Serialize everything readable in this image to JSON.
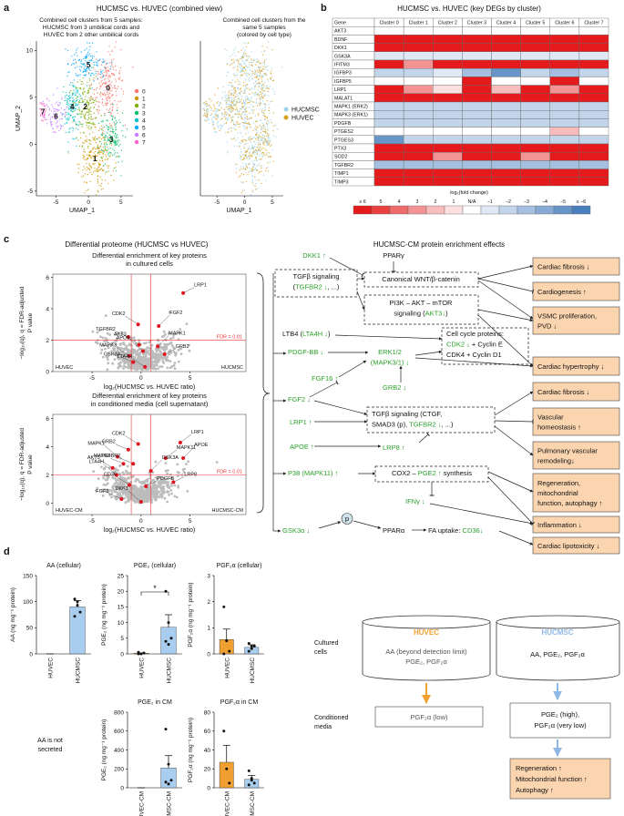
{
  "panel_labels": [
    "a",
    "b",
    "c",
    "d"
  ],
  "umap": {
    "title": "HUCMSC vs. HUVEC (combined view)",
    "left_caption": [
      "Combined cell clusters from 5 samples:",
      "HUCMSC from 3 umbilical cords and",
      "HUVEC from 2 other umbilical cords"
    ],
    "right_caption": [
      "Combined cell clusters from the",
      "same 5 samples",
      "(colored by cell type)"
    ],
    "xlabel": "UMAP_1",
    "ylabel": "UMAP_2",
    "xlim": [
      -8,
      6
    ],
    "ylim": [
      -5.5,
      11
    ],
    "xticks": [
      -5,
      0,
      5
    ],
    "yticks": [
      -5,
      0,
      5,
      10
    ],
    "clusters": [
      {
        "label": "0",
        "color": "#f8766d"
      },
      {
        "label": "1",
        "color": "#cd9600"
      },
      {
        "label": "2",
        "color": "#7cae00"
      },
      {
        "label": "3",
        "color": "#00be67"
      },
      {
        "label": "4",
        "color": "#00bfc4"
      },
      {
        "label": "5",
        "color": "#00a9ff"
      },
      {
        "label": "6",
        "color": "#c77cff"
      },
      {
        "label": "7",
        "color": "#ff61cc"
      }
    ],
    "cell_types": [
      {
        "name": "HUCMSC",
        "color": "#9fd3ea"
      },
      {
        "name": "HUVEC",
        "color": "#d9a21f"
      }
    ]
  },
  "heatmap": {
    "title": "HUCMSC vs. HUVEC (key DEGs by cluster)",
    "corner": "Gene",
    "columns": [
      "Cluster 0",
      "Cluster 1",
      "Cluster 2",
      "Cluster 3",
      "Cluster 4",
      "Cluster 5",
      "Cluster 6",
      "Cluster 7"
    ],
    "rows": [
      {
        "gene": "AKT3",
        "values": [
          0,
          0,
          0,
          0,
          0,
          0,
          0,
          0
        ]
      },
      {
        "gene": "BDNF",
        "values": [
          6,
          6,
          6,
          6,
          6,
          6,
          6,
          6
        ]
      },
      {
        "gene": "DKK1",
        "values": [
          6,
          6,
          6,
          6,
          6,
          6,
          6,
          6
        ]
      },
      {
        "gene": "GSK3A",
        "values": [
          -1,
          -1,
          -1,
          -1,
          -1,
          -1,
          -1,
          -1
        ]
      },
      {
        "gene": "IFITM3",
        "values": [
          6,
          3,
          6,
          6,
          6,
          6,
          6,
          6
        ]
      },
      {
        "gene": "IGFBP3",
        "values": [
          -2,
          -2,
          -1,
          -3,
          -5,
          -2,
          -3,
          -2
        ]
      },
      {
        "gene": "IGFBP5",
        "values": [
          0,
          0,
          0,
          6,
          0,
          0,
          6,
          0
        ]
      },
      {
        "gene": "LRP1",
        "values": [
          6,
          3,
          1,
          6,
          2,
          6,
          3,
          6
        ]
      },
      {
        "gene": "MALAT1",
        "values": [
          6,
          6,
          6,
          6,
          6,
          6,
          6,
          6
        ]
      },
      {
        "gene": "MAPK1 (ERK2)",
        "values": [
          -2,
          -2,
          -2,
          -2,
          -2,
          -2,
          -2,
          -2
        ]
      },
      {
        "gene": "MAPK3 (ERK1)",
        "values": [
          -2,
          -2,
          -2,
          -2,
          -2,
          -2,
          -2,
          -2
        ]
      },
      {
        "gene": "PDGFB",
        "values": [
          -2,
          -2,
          -2,
          -2,
          -2,
          -2,
          -2,
          -2
        ]
      },
      {
        "gene": "PTGES2",
        "values": [
          0,
          0,
          0,
          0,
          0,
          0,
          2,
          0
        ]
      },
      {
        "gene": "PTGES3",
        "values": [
          -5,
          -2,
          -2,
          -2,
          -2,
          -2,
          -2,
          -2
        ]
      },
      {
        "gene": "PTX3",
        "values": [
          6,
          6,
          6,
          6,
          6,
          6,
          6,
          6
        ]
      },
      {
        "gene": "SOD2",
        "values": [
          6,
          6,
          3,
          6,
          6,
          3,
          6,
          6
        ]
      },
      {
        "gene": "TGFBR2",
        "values": [
          -3,
          -3,
          -3,
          -3,
          -3,
          -3,
          -3,
          -3
        ]
      },
      {
        "gene": "TIMP1",
        "values": [
          6,
          6,
          6,
          6,
          6,
          6,
          6,
          6
        ]
      },
      {
        "gene": "TIMP3",
        "values": [
          6,
          6,
          6,
          6,
          6,
          6,
          6,
          6
        ]
      }
    ],
    "scale_title": "log₂(fold change)",
    "scale": [
      {
        "label": "≥ 6",
        "value": 6,
        "color": "#e41a1c"
      },
      {
        "label": "5",
        "value": 5,
        "color": "#ea4040"
      },
      {
        "label": "4",
        "value": 4,
        "color": "#ef6a6a"
      },
      {
        "label": "3",
        "value": 3,
        "color": "#f39393"
      },
      {
        "label": "2",
        "value": 2,
        "color": "#f8bcbc"
      },
      {
        "label": "1",
        "value": 1,
        "color": "#fce0e0"
      },
      {
        "label": "N/A",
        "color": "#ffffff"
      },
      {
        "label": "−1",
        "value": -1,
        "color": "#dfe8f4"
      },
      {
        "label": "−2",
        "value": -2,
        "color": "#c3d5ea"
      },
      {
        "label": "−3",
        "value": -3,
        "color": "#a4bfdf"
      },
      {
        "label": "−4",
        "value": -4,
        "color": "#86aad4"
      },
      {
        "label": "−5",
        "value": -5,
        "color": "#6894c8"
      },
      {
        "label": "≤ −6",
        "value": -6,
        "color": "#4a7fbd"
      }
    ]
  },
  "proteome": {
    "title": "Differential proteome (HUCMSC vs HUVEC)",
    "cells": {
      "title": [
        "Differential enrichment of key proteins",
        "in cultured cells"
      ],
      "xlabel": "log₂(HUCMSC vs. HUVEC ratio)",
      "ylabel": [
        "−log₁₀(q), q = FDR-adjusted",
        "P value"
      ],
      "xlim": [
        -9,
        10.7
      ],
      "ylim": [
        0,
        6.2
      ],
      "xticks": [
        -5,
        0,
        5
      ],
      "yticks": [
        0,
        2,
        4,
        6
      ],
      "fdr": {
        "value": 2,
        "label": "FDR = 0.01"
      },
      "fold_lines": [
        -1,
        1
      ],
      "corner_labels": [
        "HUVEC",
        "HUCMSC"
      ],
      "proteins": [
        {
          "name": "LRP1",
          "x": 4.3,
          "y": 5.0
        },
        {
          "name": "CDK2",
          "x": -0.3,
          "y": 3.0
        },
        {
          "name": "FGF2",
          "x": 1.8,
          "y": 2.9
        },
        {
          "name": "TGFBR2",
          "x": -1.3,
          "y": 2.2
        },
        {
          "name": "AKT3",
          "x": -0.2,
          "y": 1.7
        },
        {
          "name": "MAPK1",
          "x": 1.7,
          "y": 1.6
        },
        {
          "name": "GRB2",
          "x": 2.4,
          "y": 1.1
        },
        {
          "name": "MAPK3",
          "x": -1.2,
          "y": 1.0
        },
        {
          "name": "APOE",
          "x": 0.2,
          "y": 1.3
        },
        {
          "name": "GSK3A",
          "x": -0.8,
          "y": 0.6
        },
        {
          "name": "LTA4H",
          "x": 0.4,
          "y": 0.3
        }
      ]
    },
    "media": {
      "title": [
        "Differential enrichment of key proteins",
        "in conditioned media (cell supernatant)"
      ],
      "xlabel": "log₂(HUCMSC vs. HUVEC ratio)",
      "ylabel": [
        "−log₁₀(q), q = FDR-adjusted",
        "P value"
      ],
      "xlim": [
        -9,
        10.7
      ],
      "ylim": [
        -0.8,
        6.3
      ],
      "xticks": [
        -5,
        0,
        5
      ],
      "yticks": [
        0,
        2,
        4,
        6
      ],
      "fdr": {
        "value": 2,
        "label": "FDR = 0.01"
      },
      "fold_lines": [
        -1,
        1
      ],
      "corner_labels": [
        "HUVEC-CM",
        "HUCMSC-CM"
      ],
      "proteins": [
        {
          "name": "GRB2",
          "x": -1.3,
          "y": 3.8
        },
        {
          "name": "CDK2",
          "x": -0.3,
          "y": 4.2
        },
        {
          "name": "MAPK1",
          "x": -2.4,
          "y": 3.3
        },
        {
          "name": "MAPK3",
          "x": -1.8,
          "y": 2.8
        },
        {
          "name": "AKT3",
          "x": -2.9,
          "y": 2.5
        },
        {
          "name": "LTA4H",
          "x": -2.5,
          "y": 2.0
        },
        {
          "name": "TGFBR2",
          "x": -0.8,
          "y": 2.8
        },
        {
          "name": "MAPK11",
          "x": 2.5,
          "y": 3.2
        },
        {
          "name": "GSK3A",
          "x": 1.0,
          "y": 2.3
        },
        {
          "name": "PDGFB",
          "x": 0.5,
          "y": 1.2
        },
        {
          "name": "CD36",
          "x": -1.2,
          "y": 1.3
        },
        {
          "name": "DKK1",
          "x": 0.0,
          "y": 0.1
        },
        {
          "name": "FGF2",
          "x": -2.0,
          "y": 0.3
        },
        {
          "name": "LRP1",
          "x": 4.0,
          "y": 4.3
        },
        {
          "name": "APOE",
          "x": 4.3,
          "y": 3.2
        },
        {
          "name": "LRP8",
          "x": 3.3,
          "y": 1.5
        }
      ]
    }
  },
  "network": {
    "title": "HUCMSC-CM protein enrichment effects",
    "nodes": [
      [
        [
          {
            "text": "DKK1 ↑",
            "color": "#2ca02c"
          }
        ]
      ],
      [
        [
          {
            "text": "PPARγ"
          }
        ]
      ],
      [
        [
          {
            "text": "TGFβ signaling"
          }
        ],
        [
          {
            "text": "("
          },
          {
            "text": "TGFBR2 ↓",
            "color": "#2ca02c"
          },
          {
            "text": ", ...)"
          }
        ]
      ],
      [
        [
          {
            "text": "Canonical WNT/β-catenin"
          }
        ]
      ],
      [
        [
          {
            "text": "PI3K – AKT – mTOR"
          }
        ],
        [
          {
            "text": "signaling ("
          },
          {
            "text": "AKT3↓",
            "color": "#2ca02c"
          },
          {
            "text": ")"
          }
        ]
      ],
      [
        [
          {
            "text": "LTB4 ("
          },
          {
            "text": "LTA4H ↓",
            "color": "#2ca02c"
          },
          {
            "text": ")"
          }
        ]
      ],
      [
        [
          {
            "text": "Cell cycle proteins:"
          }
        ],
        [
          {
            "text": "CDK2 ↓",
            "color": "#2ca02c"
          },
          {
            "text": " + Cyclin E"
          }
        ],
        [
          {
            "text": "CDK4 + Cyclin D1"
          }
        ]
      ],
      [
        [
          {
            "text": "PDGF-BB ↓",
            "color": "#2ca02c"
          }
        ]
      ],
      [
        [
          {
            "text": "ERK1/2",
            "color": "#2ca02c"
          }
        ],
        [
          {
            "text": "(MAPK3/1) ↓",
            "color": "#2ca02c"
          }
        ]
      ],
      [
        [
          {
            "text": "FGF16 ↑",
            "color": "#2ca02c"
          }
        ]
      ],
      [
        [
          {
            "text": "FGF2 ↓",
            "color": "#2ca02c"
          }
        ]
      ],
      [
        [
          {
            "text": "GRB2 ↓",
            "color": "#2ca02c"
          }
        ]
      ],
      [
        [
          {
            "text": "LRP1 ↑",
            "color": "#2ca02c"
          }
        ]
      ],
      [
        [
          {
            "text": "TGFβ signaling (CTGF,"
          }
        ],
        [
          {
            "text": "SMAD3 (p), "
          },
          {
            "text": "TGFBR2 ↓",
            "color": "#2ca02c"
          },
          {
            "text": ", ...)"
          }
        ]
      ],
      [
        [
          {
            "text": "APOE ↑",
            "color": "#2ca02c"
          }
        ]
      ],
      [
        [
          {
            "text": "LRP8 ↑",
            "color": "#2ca02c"
          }
        ]
      ],
      [
        [
          {
            "text": "P38 (MAPK11) ↑",
            "color": "#2ca02c"
          }
        ]
      ],
      [
        [
          {
            "text": "COX2 – "
          },
          {
            "text": "PGE2 ↑",
            "color": "#2ca02c"
          },
          {
            "text": " synthesis"
          }
        ]
      ],
      [
        [
          {
            "text": "IFNγ ↓",
            "color": "#2ca02c"
          }
        ]
      ],
      [
        [
          {
            "text": "GSK3α ↓",
            "color": "#2ca02c"
          }
        ]
      ],
      [
        [
          {
            "text": "p"
          }
        ]
      ],
      [
        [
          {
            "text": "PPARα"
          }
        ]
      ],
      [
        [
          {
            "text": "FA uptake: "
          },
          {
            "text": "CD36↓",
            "color": "#2ca02c"
          }
        ]
      ]
    ],
    "outcomes": [
      [
        "Cardiac fibrosis ↓"
      ],
      [
        "Cardiogenesis ↑"
      ],
      [
        "VSMC proliferation,",
        "PVD ↓"
      ],
      [
        "Cardiac hypertrophy ↓"
      ],
      [
        "Cardiac fibrosis ↓"
      ],
      [
        "Vascular",
        "homeostasis ↑"
      ],
      [
        "Pulmonary vascular",
        "remodeling↓"
      ],
      [
        "Regeneration,",
        "mitochondrial",
        "function, autophagy ↑"
      ],
      [
        "Inflammation ↓"
      ],
      [
        "Cardiac lipotoxicity ↓"
      ]
    ]
  },
  "chart_data": [
    {
      "type": "bar",
      "title": "AA (cellular)",
      "ylabel": "AA (ng mg⁻¹ protein)",
      "categories": [
        "HUVEC",
        "HUCMSC"
      ],
      "values": [
        0,
        90
      ],
      "errors": [
        0,
        12
      ],
      "colors": [
        "#f0a030",
        "#a9cdee"
      ],
      "points": [
        [],
        [
          105,
          100,
          80,
          72,
          93
        ]
      ],
      "ylim": [
        0,
        150
      ],
      "yticks": [
        0,
        50,
        100,
        150
      ]
    },
    {
      "type": "bar",
      "title": "PGE₂ (cellular)",
      "ylabel": "PGE₂ (ng mg⁻¹ protein)",
      "categories": [
        "HUVEC",
        "HUCMSC"
      ],
      "values": [
        0.2,
        8.5
      ],
      "errors": [
        0.1,
        4
      ],
      "colors": [
        "#f0a030",
        "#a9cdee"
      ],
      "points": [
        [
          0,
          0,
          0.3,
          0.5
        ],
        [
          20,
          10,
          5,
          4,
          3
        ]
      ],
      "ylim": [
        0,
        25
      ],
      "yticks": [
        0,
        5,
        10,
        15,
        20,
        25
      ],
      "significance": "*"
    },
    {
      "type": "bar",
      "title": "PGF₂α (cellular)",
      "ylabel": "PGF₂α (ng mg⁻¹ protein)",
      "categories": [
        "HUVEC",
        "HUCMSC"
      ],
      "values": [
        0.55,
        0.25
      ],
      "errors": [
        0.4,
        0.1
      ],
      "colors": [
        "#f0a030",
        "#a9cdee"
      ],
      "points": [
        [
          1.8,
          0.5,
          0.1,
          0
        ],
        [
          0.4,
          0.3,
          0.3,
          0.1,
          0.2
        ]
      ],
      "ylim": [
        0,
        3
      ],
      "yticks": [
        0,
        1,
        2,
        3
      ]
    },
    {
      "type": "bar",
      "title": "PGE₂ in CM",
      "ylabel": "PGE₂ (ng mg⁻¹ protein)",
      "categories": [
        "HUVEC-CM",
        "HUCMSC-CM"
      ],
      "values": [
        0,
        210
      ],
      "errors": [
        0,
        130
      ],
      "colors": [
        "#f0a030",
        "#a9cdee"
      ],
      "points": [
        [],
        [
          620,
          250,
          80,
          60,
          40
        ]
      ],
      "ylim": [
        0,
        800
      ],
      "yticks": [
        0,
        200,
        400,
        600,
        800
      ]
    },
    {
      "type": "bar",
      "title": "PGF₂α in CM",
      "ylabel": "PGF₂α (ng mg⁻¹ protein)",
      "categories": [
        "HUVEC-CM",
        "HUCMSC-CM"
      ],
      "values": [
        27,
        9
      ],
      "errors": [
        18,
        4
      ],
      "colors": [
        "#f0a030",
        "#a9cdee"
      ],
      "points": [
        [
          60,
          20,
          5
        ],
        [
          18,
          10,
          5,
          3,
          8
        ]
      ],
      "ylim": [
        0,
        80
      ],
      "yticks": [
        0,
        20,
        40,
        60,
        80
      ]
    }
  ],
  "aa_note": [
    "AA is not",
    "secreted"
  ],
  "schematic": {
    "row_labels": [
      [
        "Cultured",
        "cells"
      ],
      [
        "Conditioned",
        "media"
      ]
    ],
    "huvec": {
      "name": "HUVEC",
      "cells": [
        "AA (beyond detection limit)",
        "PGE₂, PGF₂α"
      ],
      "media": [
        "PGF₂α (low)"
      ]
    },
    "hucmsc": {
      "name": "HUCMSC",
      "cells": [
        "AA, PGE₂, PGF₂α"
      ],
      "media": [
        "PGE₂ (high),",
        "PGF₂α (very low)"
      ],
      "effects": [
        "Regeneration ↑",
        "Mitochondrial function ↑",
        "Autophagy ↑"
      ]
    }
  }
}
